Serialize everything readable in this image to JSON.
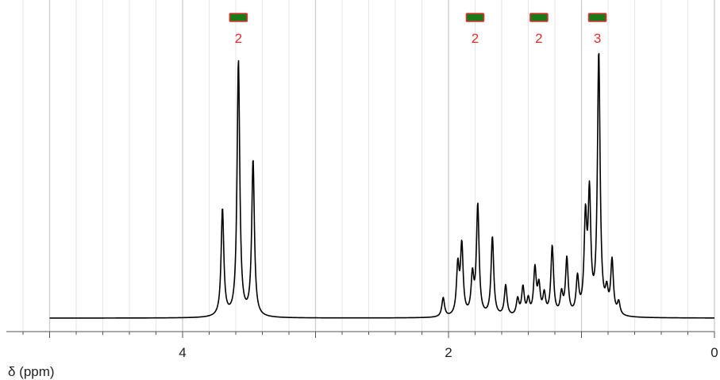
{
  "chart_data": {
    "type": "line",
    "xlabel": "δ (ppm)",
    "ylabel": "",
    "x_reversed": true,
    "xlim": [
      5.0,
      0.0
    ],
    "ylim": [
      0,
      1.1
    ],
    "grid": {
      "vertical_major": true,
      "vertical_minor": true,
      "horizontal": false
    },
    "x_ticks": [
      4,
      2,
      0
    ],
    "x_tick_labels": [
      "4",
      "2",
      "0"
    ],
    "minor_tick_step": 0.2,
    "baseline_range": [
      0.0,
      5.0
    ],
    "line_color": "#000000",
    "peaks": [
      {
        "ppm": 3.7,
        "height": 0.42
      },
      {
        "ppm": 3.58,
        "height": 1.0
      },
      {
        "ppm": 3.47,
        "height": 0.61
      },
      {
        "ppm": 2.04,
        "height": 0.075
      },
      {
        "ppm": 1.93,
        "height": 0.19
      },
      {
        "ppm": 1.9,
        "height": 0.27
      },
      {
        "ppm": 1.82,
        "height": 0.15
      },
      {
        "ppm": 1.78,
        "height": 0.43
      },
      {
        "ppm": 1.67,
        "height": 0.31
      },
      {
        "ppm": 1.57,
        "height": 0.12
      },
      {
        "ppm": 1.48,
        "height": 0.065
      },
      {
        "ppm": 1.44,
        "height": 0.11
      },
      {
        "ppm": 1.4,
        "height": 0.06
      },
      {
        "ppm": 1.35,
        "height": 0.18
      },
      {
        "ppm": 1.32,
        "height": 0.11
      },
      {
        "ppm": 1.28,
        "height": 0.08
      },
      {
        "ppm": 1.22,
        "height": 0.27
      },
      {
        "ppm": 1.15,
        "height": 0.08
      },
      {
        "ppm": 1.11,
        "height": 0.22
      },
      {
        "ppm": 1.03,
        "height": 0.14
      },
      {
        "ppm": 0.97,
        "height": 0.36
      },
      {
        "ppm": 0.94,
        "height": 0.45
      },
      {
        "ppm": 0.87,
        "height": 1.02
      },
      {
        "ppm": 0.81,
        "height": 0.08
      },
      {
        "ppm": 0.77,
        "height": 0.21
      },
      {
        "ppm": 0.72,
        "height": 0.05
      }
    ],
    "peak_half_width_ppm": 0.012,
    "integrals": [
      {
        "ppm": 3.58,
        "label": "2"
      },
      {
        "ppm": 1.8,
        "label": "2"
      },
      {
        "ppm": 1.32,
        "label": "2"
      },
      {
        "ppm": 0.88,
        "label": "3"
      }
    ],
    "integral_colors": {
      "fill": "#1a7a1a",
      "border": "#e03030",
      "label": "#e03030"
    }
  }
}
